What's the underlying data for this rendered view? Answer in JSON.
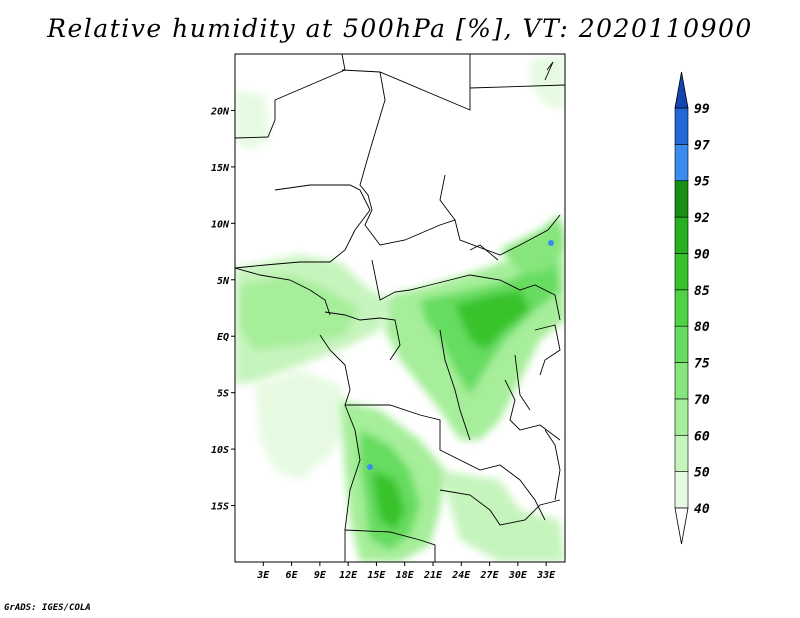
{
  "title": "Relative humidity at 500hPa [%], VT: 2020110900",
  "credit": "GrADS: IGES/COLA",
  "chart_data": {
    "type": "heatmap",
    "variable": "Relative humidity at 500hPa",
    "unit": "%",
    "valid_time": "2020110900",
    "lon_range": [
      0,
      35
    ],
    "lat_range": [
      -20,
      25
    ],
    "lon_ticks": [
      "3E",
      "6E",
      "9E",
      "12E",
      "15E",
      "18E",
      "21E",
      "24E",
      "27E",
      "30E",
      "33E"
    ],
    "lat_ticks": [
      "20N",
      "15N",
      "10N",
      "5N",
      "EQ",
      "5S",
      "10S",
      "15S"
    ],
    "colorbar": {
      "levels": [
        "40",
        "50",
        "60",
        "70",
        "75",
        "80",
        "85",
        "90",
        "92",
        "95",
        "97",
        "99"
      ],
      "colors": [
        "#ffffff",
        "#e6fae2",
        "#c6f4bd",
        "#a6ee9a",
        "#86e57c",
        "#66dc60",
        "#4fd244",
        "#38c32c",
        "#27b01f",
        "#168f12",
        "#3a8cf0",
        "#2266d8",
        "#1346b4"
      ]
    }
  }
}
